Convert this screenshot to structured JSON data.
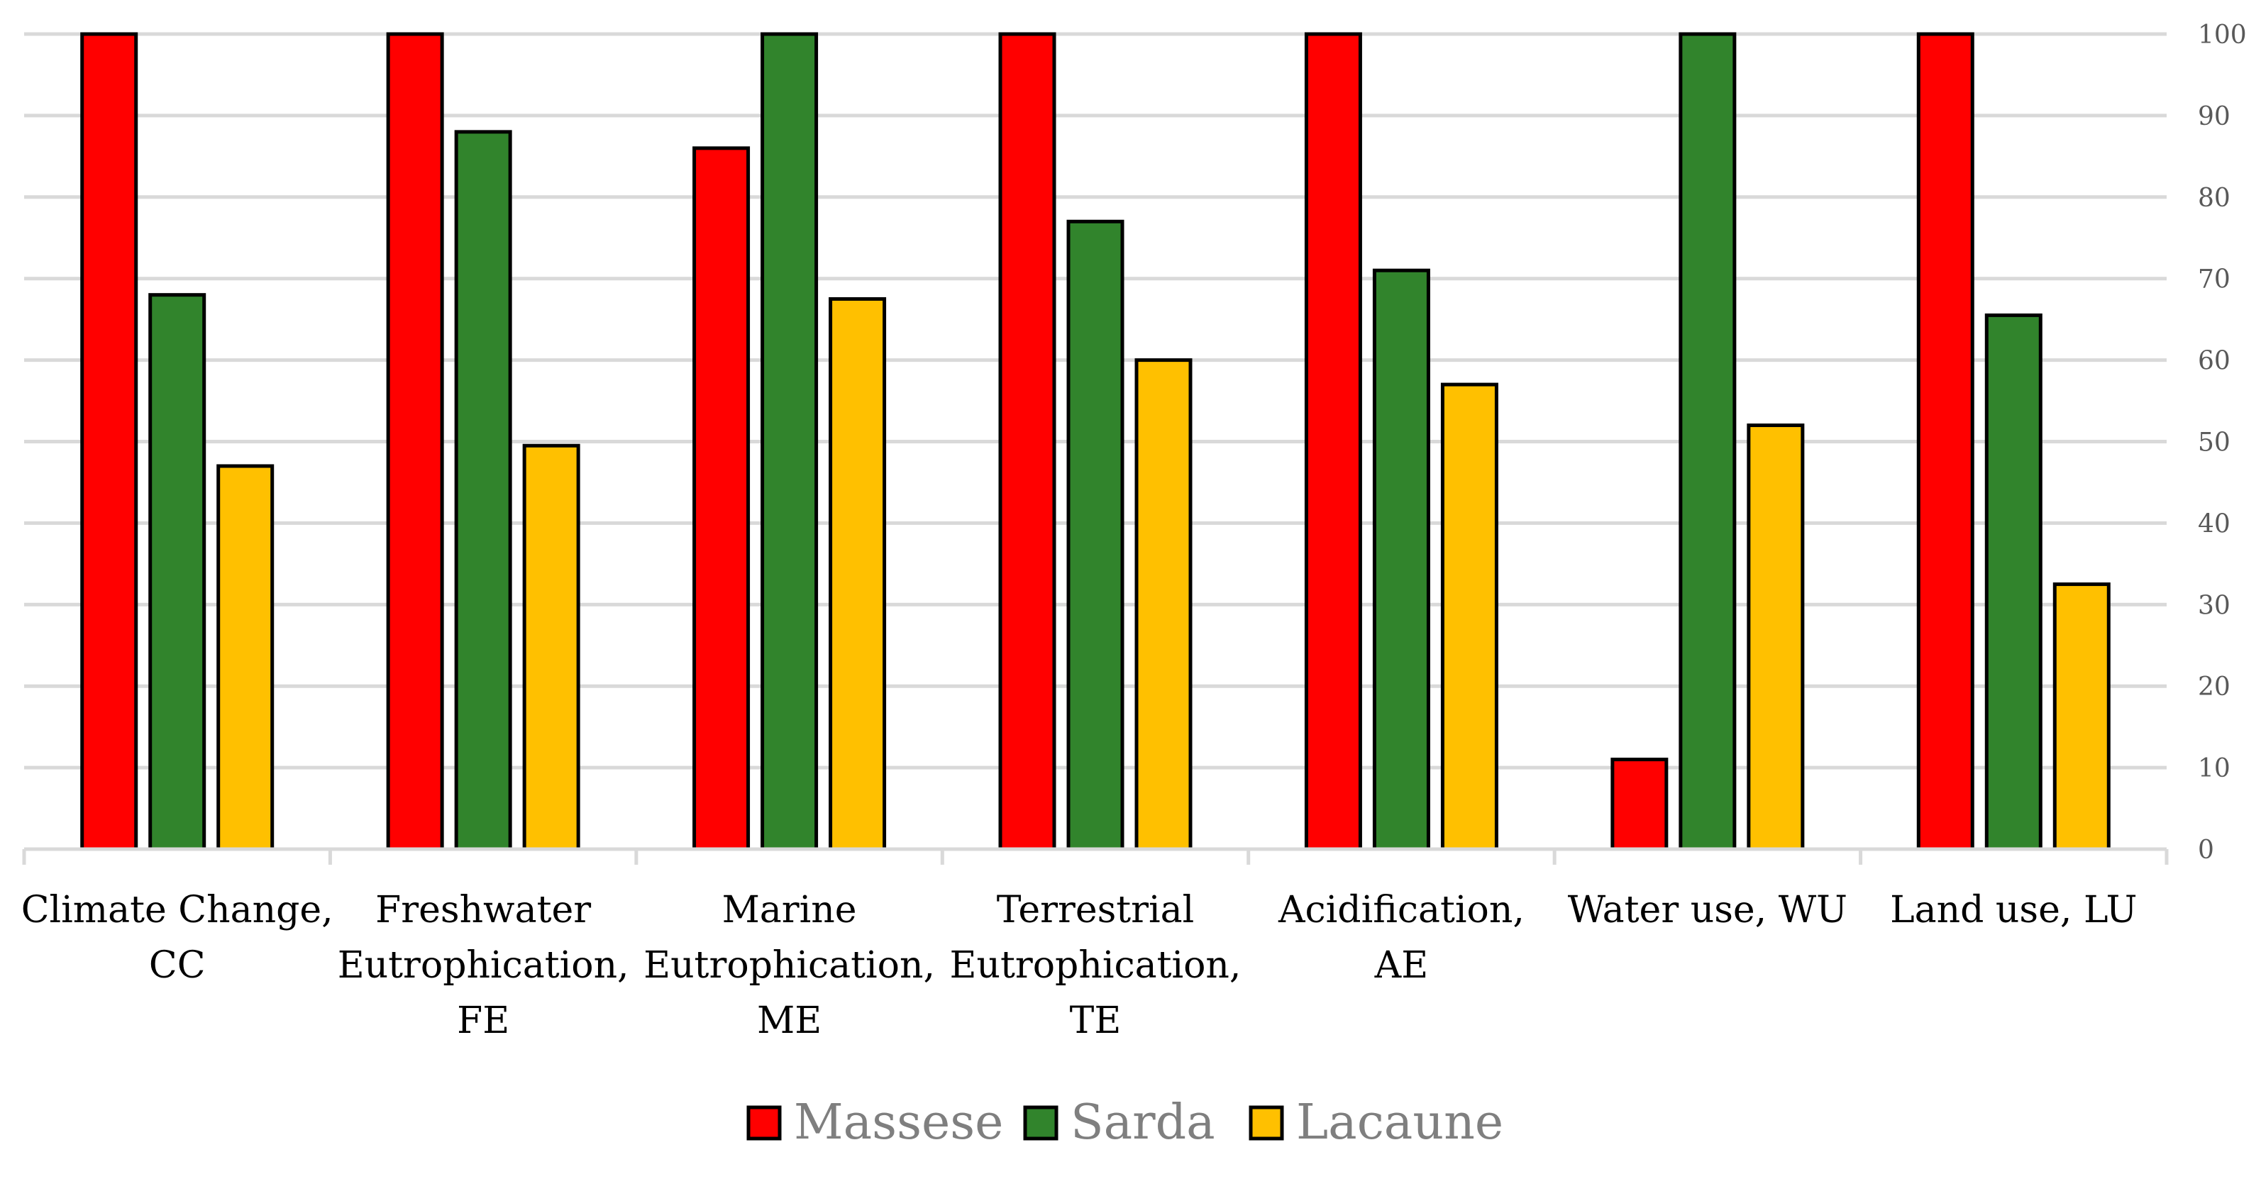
{
  "chart_data": {
    "type": "bar",
    "categories": [
      [
        "Climate Change,",
        "CC"
      ],
      [
        "Freshwater",
        "Eutrophication,",
        "FE"
      ],
      [
        "Marine",
        "Eutrophication,",
        "ME"
      ],
      [
        "Terrestrial",
        "Eutrophication,",
        "TE"
      ],
      [
        "Acidification,",
        "AE"
      ],
      [
        "Water use, WU"
      ],
      [
        "Land use, LU"
      ]
    ],
    "series": [
      {
        "name": "Massese",
        "color": "#FF0000",
        "values": [
          100,
          100,
          86,
          100,
          100,
          11,
          100
        ]
      },
      {
        "name": "Sarda",
        "color": "#31842C",
        "values": [
          68,
          88,
          100,
          77,
          71,
          100,
          65.5
        ]
      },
      {
        "name": "Lacaune",
        "color": "#FFC000",
        "values": [
          47,
          49.5,
          67.5,
          60,
          57,
          52,
          32.5
        ]
      }
    ],
    "yaxis": {
      "position": "right",
      "min": 0,
      "max": 100,
      "step": 10
    },
    "ticks": [
      "0",
      "10",
      "20",
      "30",
      "40",
      "50",
      "60",
      "70",
      "80",
      "90",
      "100"
    ],
    "grid": true,
    "legend_position": "bottom",
    "title": "",
    "xlabel": "",
    "ylabel": ""
  }
}
